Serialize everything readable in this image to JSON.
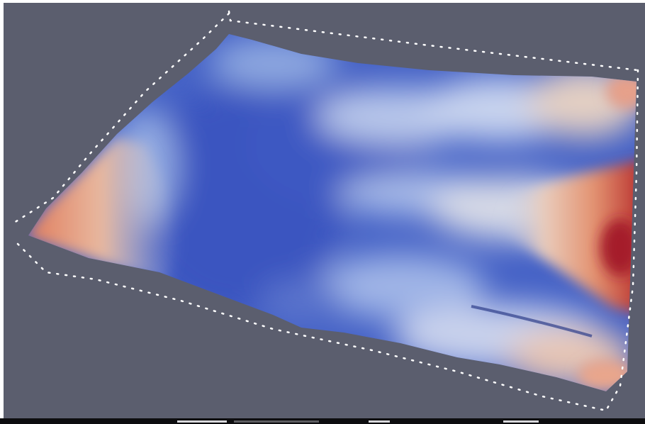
{
  "scene": {
    "background_color": "#5b5e6e",
    "colormap": {
      "name": "cool-to-warm",
      "low": "#3b4cc0",
      "mid": "#dddddd",
      "high": "#b40426"
    },
    "surface": "terrain-elevation",
    "bounding_box": "dotted-outline",
    "outline_color": "#ffffff"
  },
  "statusbar": {
    "background_color": "#0d0d0f"
  }
}
